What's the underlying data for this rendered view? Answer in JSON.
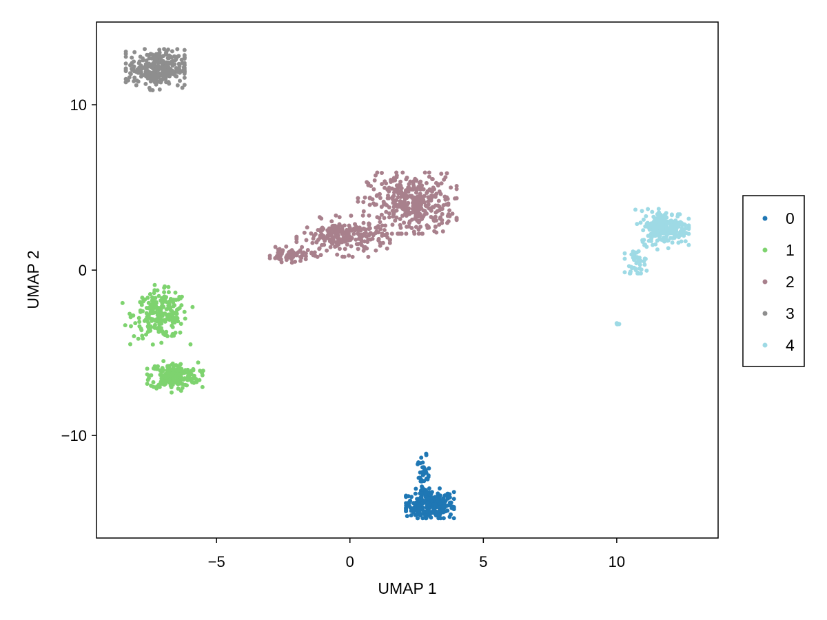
{
  "chart_data": {
    "type": "scatter",
    "title": "",
    "xlabel": "UMAP 1",
    "ylabel": "UMAP 2",
    "xlim": [
      -9.5,
      13.8
    ],
    "ylim": [
      -16.2,
      15.0
    ],
    "xticks": [
      -5,
      0,
      5,
      10
    ],
    "xtick_labels": [
      "−5",
      "0",
      "5",
      "10"
    ],
    "yticks": [
      -10,
      0,
      10
    ],
    "ytick_labels": [
      "−10",
      "0",
      "10"
    ],
    "grid": false,
    "legend_position": "right",
    "series": [
      {
        "name": "0",
        "color": "#1f77b4",
        "clusters": [
          {
            "cx": 3.0,
            "cy": -14.2,
            "sx": 0.45,
            "sy": 0.45,
            "n": 260,
            "xr": [
              2.1,
              3.9
            ],
            "yr": [
              -15.0,
              -13.2
            ]
          },
          {
            "cx": 2.75,
            "cy": -12.5,
            "sx": 0.12,
            "sy": 0.6,
            "n": 40,
            "xr": [
              2.5,
              3.0
            ],
            "yr": [
              -13.5,
              -11.1
            ]
          }
        ]
      },
      {
        "name": "1",
        "color": "#7ed36f",
        "clusters": [
          {
            "cx": -7.1,
            "cy": -2.7,
            "sx": 0.5,
            "sy": 0.7,
            "n": 230,
            "xr": [
              -8.6,
              -5.9
            ],
            "yr": [
              -4.5,
              -0.9
            ]
          },
          {
            "cx": -6.6,
            "cy": -6.4,
            "sx": 0.45,
            "sy": 0.4,
            "n": 200,
            "xr": [
              -7.6,
              -5.5
            ],
            "yr": [
              -7.4,
              -5.2
            ]
          }
        ]
      },
      {
        "name": "2",
        "color": "#a8808c",
        "clusters": [
          {
            "cx": 2.3,
            "cy": 4.0,
            "sx": 0.8,
            "sy": 0.9,
            "n": 380,
            "xr": [
              0.3,
              4.0
            ],
            "yr": [
              2.2,
              5.9
            ]
          },
          {
            "cx": -0.2,
            "cy": 2.0,
            "sx": 0.8,
            "sy": 0.5,
            "n": 230,
            "xr": [
              -2.0,
              1.5
            ],
            "yr": [
              0.8,
              3.3
            ]
          },
          {
            "cx": -2.2,
            "cy": 0.9,
            "sx": 0.4,
            "sy": 0.2,
            "n": 60,
            "xr": [
              -3.0,
              -1.3
            ],
            "yr": [
              0.4,
              1.6
            ]
          }
        ]
      },
      {
        "name": "3",
        "color": "#8e8e8e",
        "clusters": [
          {
            "cx": -7.2,
            "cy": 12.2,
            "sx": 0.55,
            "sy": 0.55,
            "n": 300,
            "xr": [
              -8.4,
              -6.2
            ],
            "yr": [
              10.3,
              13.5
            ]
          }
        ]
      },
      {
        "name": "4",
        "color": "#9edae5",
        "clusters": [
          {
            "cx": 11.8,
            "cy": 2.6,
            "sx": 0.45,
            "sy": 0.5,
            "n": 260,
            "xr": [
              10.7,
              12.7
            ],
            "yr": [
              1.0,
              3.7
            ]
          },
          {
            "cx": 10.7,
            "cy": 0.4,
            "sx": 0.2,
            "sy": 0.4,
            "n": 40,
            "xr": [
              10.3,
              11.2
            ],
            "yr": [
              -0.2,
              1.2
            ]
          },
          {
            "cx": 10.05,
            "cy": -3.25,
            "sx": 0.03,
            "sy": 0.03,
            "n": 12,
            "xr": [
              9.95,
              10.15
            ],
            "yr": [
              -3.35,
              -3.15
            ]
          }
        ]
      }
    ]
  }
}
